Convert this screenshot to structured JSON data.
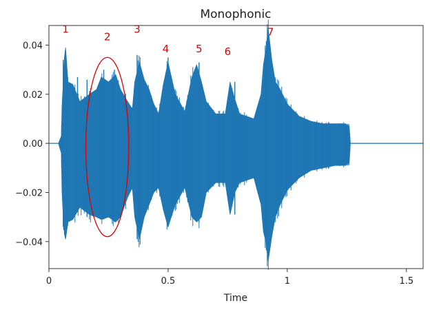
{
  "chart_data": {
    "type": "waveform",
    "title": "Monophonic",
    "xlabel": "Time",
    "ylabel": "",
    "xlim": [
      0,
      1.57
    ],
    "ylim": [
      -0.051,
      0.048
    ],
    "x_ticks": [
      {
        "value": 0,
        "label": "0"
      },
      {
        "value": 0.5,
        "label": "0.5"
      },
      {
        "value": 1,
        "label": "1"
      },
      {
        "value": 1.5,
        "label": "1.5"
      }
    ],
    "y_ticks": [
      {
        "value": 0.04,
        "label": "0.04"
      },
      {
        "value": 0.02,
        "label": "0.02"
      },
      {
        "value": 0.0,
        "label": "0.00"
      },
      {
        "value": -0.02,
        "label": "−0.02"
      },
      {
        "value": -0.04,
        "label": "−0.04"
      }
    ],
    "grid": false,
    "series_color": "#1f77b4",
    "annotation_color": "#e00000",
    "envelope": {
      "x": [
        0.04,
        0.052,
        0.055,
        0.06,
        0.065,
        0.07,
        0.08,
        0.1,
        0.13,
        0.17,
        0.2,
        0.22,
        0.25,
        0.28,
        0.3,
        0.33,
        0.35,
        0.36,
        0.38,
        0.4,
        0.42,
        0.44,
        0.46,
        0.48,
        0.5,
        0.53,
        0.57,
        0.6,
        0.62,
        0.64,
        0.66,
        0.7,
        0.74,
        0.76,
        0.78,
        0.8,
        0.86,
        0.89,
        0.9,
        0.91,
        0.92,
        0.935,
        0.95,
        0.97,
        1.0,
        1.05,
        1.1,
        1.15,
        1.2,
        1.24,
        1.26,
        1.265,
        1.57
      ],
      "top": [
        0.0,
        0.003,
        0.015,
        0.025,
        0.035,
        0.039,
        0.025,
        0.024,
        0.017,
        0.02,
        0.022,
        0.027,
        0.025,
        0.028,
        0.022,
        0.017,
        0.014,
        0.025,
        0.033,
        0.026,
        0.022,
        0.016,
        0.012,
        0.024,
        0.033,
        0.02,
        0.013,
        0.027,
        0.032,
        0.025,
        0.017,
        0.012,
        0.012,
        0.025,
        0.018,
        0.012,
        0.01,
        0.02,
        0.032,
        0.038,
        0.047,
        0.034,
        0.025,
        0.022,
        0.016,
        0.011,
        0.009,
        0.008,
        0.008,
        0.008,
        0.007,
        0.0,
        0.0
      ],
      "bottom": [
        0.0,
        -0.004,
        -0.02,
        -0.03,
        -0.037,
        -0.039,
        -0.032,
        -0.031,
        -0.026,
        -0.029,
        -0.03,
        -0.031,
        -0.03,
        -0.032,
        -0.03,
        -0.022,
        -0.018,
        -0.03,
        -0.039,
        -0.03,
        -0.025,
        -0.02,
        -0.018,
        -0.027,
        -0.034,
        -0.025,
        -0.018,
        -0.03,
        -0.032,
        -0.03,
        -0.02,
        -0.016,
        -0.016,
        -0.029,
        -0.02,
        -0.016,
        -0.014,
        -0.025,
        -0.036,
        -0.04,
        -0.048,
        -0.038,
        -0.03,
        -0.025,
        -0.019,
        -0.014,
        -0.011,
        -0.01,
        -0.009,
        -0.009,
        -0.008,
        0.0,
        0.0
      ]
    },
    "spikes": [
      {
        "x": 0.06,
        "top": 0.034,
        "bottom": -0.034
      },
      {
        "x": 0.075,
        "top": 0.03,
        "bottom": -0.032
      },
      {
        "x": 0.12,
        "top": 0.027,
        "bottom": -0.028
      },
      {
        "x": 0.16,
        "top": 0.026,
        "bottom": -0.03
      },
      {
        "x": 0.23,
        "top": 0.03,
        "bottom": -0.031
      },
      {
        "x": 0.275,
        "top": 0.03,
        "bottom": -0.032
      },
      {
        "x": 0.37,
        "top": 0.036,
        "bottom": -0.039
      },
      {
        "x": 0.5,
        "top": 0.035,
        "bottom": -0.034
      },
      {
        "x": 0.63,
        "top": 0.033,
        "bottom": -0.032
      },
      {
        "x": 0.78,
        "top": 0.025,
        "bottom": -0.029
      },
      {
        "x": 0.92,
        "top": 0.047,
        "bottom": -0.047
      }
    ],
    "annotations": [
      {
        "label": "1",
        "x": 0.07,
        "y": 0.045
      },
      {
        "label": "2",
        "x": 0.245,
        "y": 0.042
      },
      {
        "label": "3",
        "x": 0.37,
        "y": 0.045
      },
      {
        "label": "4",
        "x": 0.49,
        "y": 0.037
      },
      {
        "label": "5",
        "x": 0.63,
        "y": 0.037
      },
      {
        "label": "6",
        "x": 0.75,
        "y": 0.036
      },
      {
        "label": "7",
        "x": 0.93,
        "y": 0.044
      }
    ],
    "ellipse": {
      "cx": 0.245,
      "cy": -0.0015,
      "rx": 0.09,
      "ry": 0.0365
    }
  }
}
